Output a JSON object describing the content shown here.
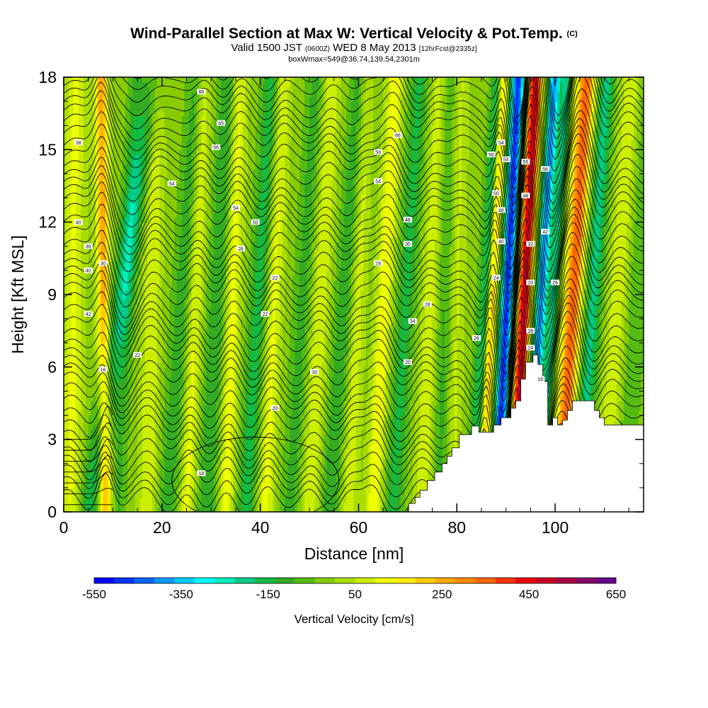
{
  "title": {
    "main": "Wind-Parallel Section at Max W: Vertical Velocity & Pot.Temp.",
    "main_mark": "(C)",
    "valid_a": "Valid 1500 JST",
    "valid_b": "(0600Z)",
    "valid_c": "WED 8 May 2013",
    "valid_d": "[12hrFcst@2335z]",
    "box": "boxWmax=549@36.74,139.54,2301m"
  },
  "chart_data": {
    "type": "heatmap",
    "xlabel": "Distance [nm]",
    "ylabel": "Height [Kft MSL]",
    "xlim": [
      0,
      118
    ],
    "ylim": [
      0,
      18
    ],
    "x_ticks": [
      "0",
      "20",
      "40",
      "60",
      "80",
      "100"
    ],
    "y_ticks": [
      "0",
      "3",
      "6",
      "9",
      "12",
      "15",
      "18"
    ],
    "grid": false,
    "colorbar": {
      "label": "Vertical Velocity [cm/s]",
      "tick_labels": [
        "-550",
        "-350",
        "-150",
        "50",
        "250",
        "450",
        "650"
      ],
      "levels": [
        -550,
        650
      ],
      "step": 50,
      "colors": [
        "#0000ff",
        "#0033ff",
        "#0066ff",
        "#0099ff",
        "#00ccff",
        "#00ffff",
        "#00eebb",
        "#00cc88",
        "#11bb44",
        "#33aa22",
        "#55bb11",
        "#88cc00",
        "#aadd00",
        "#ccee00",
        "#eeff00",
        "#ffee00",
        "#ffcc00",
        "#ffaa00",
        "#ff8800",
        "#ff6600",
        "#ff3300",
        "#ee0000",
        "#cc0022",
        "#aa0044",
        "#880066",
        "#660088"
      ]
    },
    "field": {
      "background_w": 30,
      "bands": [
        {
          "x": 1.5,
          "w": 130,
          "width": 2.0,
          "lean": 0.05
        },
        {
          "x": 5,
          "w": -160,
          "width": 2.3,
          "lean": 0.75
        },
        {
          "x": 8.5,
          "w": 300,
          "width": 1.3,
          "lean": -0.05
        },
        {
          "x": 11,
          "w": -90,
          "width": 1.6,
          "lean": 0.2
        },
        {
          "x": 17,
          "w": 120,
          "width": 1.8,
          "lean": 0.1
        },
        {
          "x": 21,
          "w": -110,
          "width": 2.2,
          "lean": 0.35
        },
        {
          "x": 25,
          "w": 140,
          "width": 1.5,
          "lean": 0.2
        },
        {
          "x": 29,
          "w": -130,
          "width": 2.0,
          "lean": 0.25
        },
        {
          "x": 33,
          "w": 150,
          "width": 1.6,
          "lean": 0.15
        },
        {
          "x": 37,
          "w": -150,
          "width": 2.0,
          "lean": 0.3
        },
        {
          "x": 41,
          "w": 140,
          "width": 1.6,
          "lean": 0.2
        },
        {
          "x": 46,
          "w": -100,
          "width": 2.0,
          "lean": 0.3
        },
        {
          "x": 50,
          "w": 120,
          "width": 1.8,
          "lean": 0.25
        },
        {
          "x": 54,
          "w": -120,
          "width": 2.0,
          "lean": 0.35
        },
        {
          "x": 58,
          "w": 110,
          "width": 1.5,
          "lean": 0.2
        },
        {
          "x": 63,
          "w": 170,
          "width": 1.6,
          "lean": 0.25
        },
        {
          "x": 67,
          "w": -140,
          "width": 2.0,
          "lean": 0.3
        },
        {
          "x": 73,
          "w": 120,
          "width": 1.8,
          "lean": 0.2
        },
        {
          "x": 76.5,
          "w": -100,
          "width": 2.0,
          "lean": 0.1
        },
        {
          "x": 79,
          "w": 90,
          "width": 1.5,
          "lean": 0.1
        },
        {
          "x": 83,
          "w": -160,
          "width": 1.5,
          "lean": 0.3
        },
        {
          "x": 85,
          "w": 280,
          "width": 0.9,
          "lean": 0.25
        },
        {
          "x": 88,
          "w": -520,
          "width": 1.3,
          "lean": 0.25
        },
        {
          "x": 91.5,
          "w": 560,
          "width": 1.4,
          "lean": 0.25
        },
        {
          "x": 94.5,
          "w": -420,
          "width": 1.2,
          "lean": 0.3
        },
        {
          "x": 97,
          "w": -200,
          "width": 1.1,
          "lean": 0.3
        },
        {
          "x": 101,
          "w": 400,
          "width": 1.9,
          "lean": 0.3
        },
        {
          "x": 105,
          "w": -200,
          "width": 1.9,
          "lean": 0.3
        },
        {
          "x": 110,
          "w": 110,
          "width": 2.0,
          "lean": 0.3
        },
        {
          "x": 114,
          "w": -80,
          "width": 2.0,
          "lean": 0.3
        }
      ],
      "contour_labels": [
        {
          "x": 28,
          "y": 17.4,
          "text": "66"
        },
        {
          "x": 32,
          "y": 16.1,
          "text": "65"
        },
        {
          "x": 68,
          "y": 15.6,
          "text": "66"
        },
        {
          "x": 3,
          "y": 15.3,
          "text": "38"
        },
        {
          "x": 31,
          "y": 15.1,
          "text": "56"
        },
        {
          "x": 64,
          "y": 14.9,
          "text": "56"
        },
        {
          "x": 87,
          "y": 14.8,
          "text": "56"
        },
        {
          "x": 89,
          "y": 15.3,
          "text": "54"
        },
        {
          "x": 90,
          "y": 14.6,
          "text": "54"
        },
        {
          "x": 94,
          "y": 14.5,
          "text": "55"
        },
        {
          "x": 98,
          "y": 14.2,
          "text": "56"
        },
        {
          "x": 64,
          "y": 13.7,
          "text": "54"
        },
        {
          "x": 22,
          "y": 13.6,
          "text": "54"
        },
        {
          "x": 88,
          "y": 13.2,
          "text": "50"
        },
        {
          "x": 94,
          "y": 13.1,
          "text": "48"
        },
        {
          "x": 35,
          "y": 12.6,
          "text": "54"
        },
        {
          "x": 89,
          "y": 12.5,
          "text": "48"
        },
        {
          "x": 3,
          "y": 12.0,
          "text": "40"
        },
        {
          "x": 39,
          "y": 12.0,
          "text": "50"
        },
        {
          "x": 70,
          "y": 12.1,
          "text": "48"
        },
        {
          "x": 98,
          "y": 11.6,
          "text": "42"
        },
        {
          "x": 5,
          "y": 11.0,
          "text": "38"
        },
        {
          "x": 36,
          "y": 10.9,
          "text": "28"
        },
        {
          "x": 70,
          "y": 11.1,
          "text": "30"
        },
        {
          "x": 89,
          "y": 11.2,
          "text": "40"
        },
        {
          "x": 95,
          "y": 11.1,
          "text": "32"
        },
        {
          "x": 8,
          "y": 10.3,
          "text": "30"
        },
        {
          "x": 64,
          "y": 10.3,
          "text": "28"
        },
        {
          "x": 5,
          "y": 10.0,
          "text": "40"
        },
        {
          "x": 43,
          "y": 9.7,
          "text": "22"
        },
        {
          "x": 88,
          "y": 9.7,
          "text": "24"
        },
        {
          "x": 95,
          "y": 9.5,
          "text": "20"
        },
        {
          "x": 100,
          "y": 9.5,
          "text": "26"
        },
        {
          "x": 74,
          "y": 8.6,
          "text": "28"
        },
        {
          "x": 5,
          "y": 8.2,
          "text": "42"
        },
        {
          "x": 41,
          "y": 8.2,
          "text": "22"
        },
        {
          "x": 71,
          "y": 7.9,
          "text": "34"
        },
        {
          "x": 95,
          "y": 7.5,
          "text": "28"
        },
        {
          "x": 84,
          "y": 7.2,
          "text": "28"
        },
        {
          "x": 95,
          "y": 6.8,
          "text": "24"
        },
        {
          "x": 15,
          "y": 6.5,
          "text": "22"
        },
        {
          "x": 70,
          "y": 6.2,
          "text": "20"
        },
        {
          "x": 8,
          "y": 5.9,
          "text": "16"
        },
        {
          "x": 51,
          "y": 5.8,
          "text": "16"
        },
        {
          "x": 97,
          "y": 5.5,
          "text": "16"
        },
        {
          "x": 43,
          "y": 4.3,
          "text": "20"
        },
        {
          "x": 28,
          "y": 1.6,
          "text": "18"
        }
      ]
    },
    "terrain": [
      [
        70.2,
        0
      ],
      [
        70.2,
        0.35
      ],
      [
        71.5,
        0.35
      ],
      [
        71.5,
        0.6
      ],
      [
        72.5,
        0.6
      ],
      [
        72.5,
        0.9
      ],
      [
        74,
        0.9
      ],
      [
        74,
        1.3
      ],
      [
        75.5,
        1.3
      ],
      [
        75.5,
        1.65
      ],
      [
        77,
        1.65
      ],
      [
        77,
        2.0
      ],
      [
        78,
        2.0
      ],
      [
        78,
        2.3
      ],
      [
        79,
        2.3
      ],
      [
        79,
        2.65
      ],
      [
        80.5,
        2.65
      ],
      [
        80.5,
        3.2
      ],
      [
        83,
        3.2
      ],
      [
        83,
        3.55
      ],
      [
        84.5,
        3.55
      ],
      [
        84.5,
        3.3
      ],
      [
        87.5,
        3.3
      ],
      [
        87.5,
        3.6
      ],
      [
        89,
        3.6
      ],
      [
        89,
        3.9
      ],
      [
        91,
        3.9
      ],
      [
        91,
        4.3
      ],
      [
        92,
        4.3
      ],
      [
        92,
        4.6
      ],
      [
        93,
        4.6
      ],
      [
        93,
        5.5
      ],
      [
        94,
        5.5
      ],
      [
        94,
        6.2
      ],
      [
        95.5,
        6.2
      ],
      [
        95.5,
        6.5
      ],
      [
        96.5,
        6.5
      ],
      [
        96.5,
        6.1
      ],
      [
        97.5,
        6.1
      ],
      [
        97.5,
        5.4
      ],
      [
        98.5,
        5.4
      ],
      [
        98.5,
        3.6
      ],
      [
        99.5,
        3.6
      ],
      [
        99.5,
        3.9
      ],
      [
        100.5,
        3.9
      ],
      [
        100.5,
        3.6
      ],
      [
        101.5,
        3.6
      ],
      [
        101.5,
        3.8
      ],
      [
        102.5,
        3.8
      ],
      [
        102.5,
        4.2
      ],
      [
        103.5,
        4.2
      ],
      [
        103.5,
        4.6
      ],
      [
        108,
        4.6
      ],
      [
        108,
        4.2
      ],
      [
        109,
        4.2
      ],
      [
        109,
        3.9
      ],
      [
        110,
        3.9
      ],
      [
        110,
        3.6
      ],
      [
        118,
        3.6
      ],
      [
        118,
        0
      ]
    ]
  }
}
